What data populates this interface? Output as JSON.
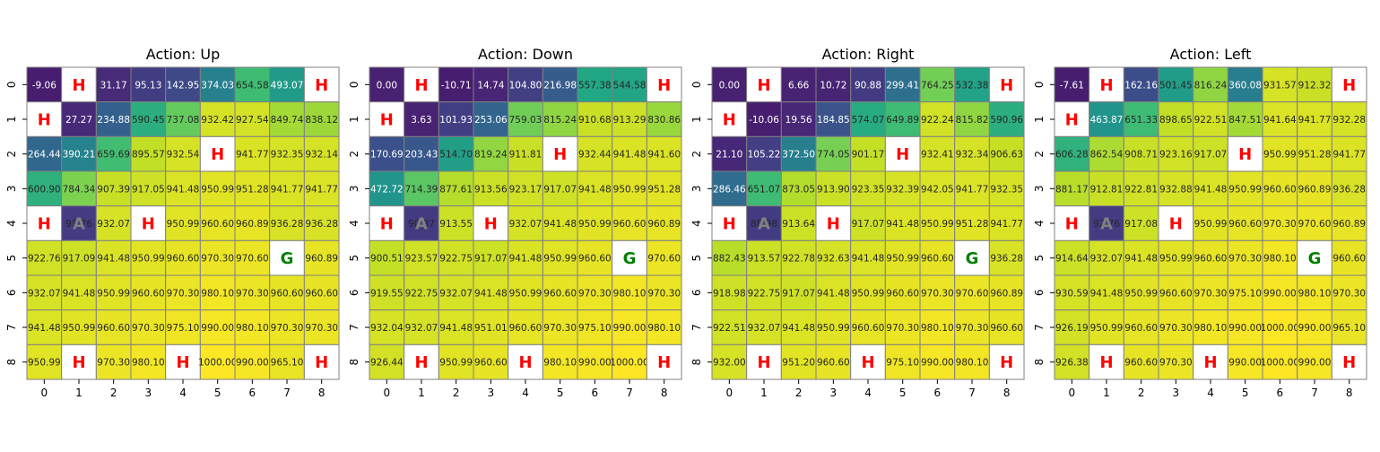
{
  "figure": {
    "colormap": "viridis",
    "colors": {
      "grid_line": "#808080",
      "hole_text": "#ff0000",
      "goal_text": "#008000",
      "agent_text": "#808080",
      "special_cell_bg": "#ffffff",
      "value_text_light": "#ffffff",
      "value_text_dark": "#262626"
    }
  },
  "chart_data": [
    {
      "type": "heatmap",
      "title": "Action: Up",
      "x_ticks": [
        "0",
        "1",
        "2",
        "3",
        "4",
        "5",
        "6",
        "7",
        "8"
      ],
      "y_ticks": [
        "0",
        "1",
        "2",
        "3",
        "4",
        "5",
        "6",
        "7",
        "8"
      ],
      "vmin": -100,
      "vmax": 1000,
      "values": [
        [
          "-9.06",
          "H",
          "31.17",
          "95.13",
          "142.95",
          "374.03",
          "654.58",
          "493.07",
          "H"
        ],
        [
          "H",
          "27.27",
          "234.88",
          "590.45",
          "737.08",
          "932.42",
          "927.54",
          "849.74",
          "838.12"
        ],
        [
          "264.44",
          "390.21",
          "659.69",
          "895.57",
          "932.54",
          "H",
          "941.77",
          "932.35",
          "932.14"
        ],
        [
          "600.90",
          "784.34",
          "907.39",
          "917.05",
          "941.48",
          "950.99",
          "951.28",
          "941.77",
          "941.77"
        ],
        [
          "H",
          "A",
          "932.07",
          "H",
          "950.99",
          "960.60",
          "960.89",
          "936.28",
          "936.28"
        ],
        [
          "922.76",
          "917.09",
          "941.48",
          "950.99",
          "960.60",
          "970.30",
          "970.60",
          "G",
          "960.89"
        ],
        [
          "932.07",
          "941.48",
          "950.99",
          "960.60",
          "970.30",
          "980.10",
          "970.30",
          "960.60",
          "960.60"
        ],
        [
          "941.48",
          "950.99",
          "960.60",
          "970.30",
          "975.10",
          "990.00",
          "980.10",
          "970.30",
          "970.30"
        ],
        [
          "950.99",
          "H",
          "970.30",
          "980.10",
          "H",
          "1000.00",
          "990.00",
          "965.10",
          "H"
        ]
      ],
      "agent_partial": "91.76"
    },
    {
      "type": "heatmap",
      "title": "Action: Down",
      "x_ticks": [
        "0",
        "1",
        "2",
        "3",
        "4",
        "5",
        "6",
        "7",
        "8"
      ],
      "y_ticks": [
        "0",
        "1",
        "2",
        "3",
        "4",
        "5",
        "6",
        "7",
        "8"
      ],
      "vmin": -100,
      "vmax": 1000,
      "values": [
        [
          "0.00",
          "H",
          "-10.71",
          "14.74",
          "104.80",
          "216.98",
          "557.38",
          "544.58",
          "H"
        ],
        [
          "H",
          "3.63",
          "101.93",
          "253.06",
          "759.03",
          "815.24",
          "910.68",
          "913.29",
          "830.86"
        ],
        [
          "170.69",
          "203.43",
          "514.70",
          "819.24",
          "911.81",
          "H",
          "932.44",
          "941.48",
          "941.60"
        ],
        [
          "472.72",
          "714.39",
          "877.61",
          "913.56",
          "923.17",
          "917.07",
          "941.48",
          "950.99",
          "951.28"
        ],
        [
          "H",
          "A",
          "913.55",
          "H",
          "932.07",
          "941.48",
          "950.99",
          "960.60",
          "960.89"
        ],
        [
          "900.51",
          "923.57",
          "922.75",
          "917.07",
          "941.48",
          "950.99",
          "960.60",
          "G",
          "970.60"
        ],
        [
          "919.55",
          "922.75",
          "932.07",
          "941.48",
          "950.99",
          "960.60",
          "970.30",
          "980.10",
          "970.30"
        ],
        [
          "932.04",
          "932.07",
          "941.48",
          "951.01",
          "960.60",
          "970.30",
          "975.10",
          "990.00",
          "980.10"
        ],
        [
          "926.44",
          "H",
          "950.99",
          "960.60",
          "H",
          "980.10",
          "990.00",
          "1000.00",
          "H"
        ]
      ],
      "agent_partial": "90.87"
    },
    {
      "type": "heatmap",
      "title": "Action: Right",
      "x_ticks": [
        "0",
        "1",
        "2",
        "3",
        "4",
        "5",
        "6",
        "7",
        "8"
      ],
      "y_ticks": [
        "0",
        "1",
        "2",
        "3",
        "4",
        "5",
        "6",
        "7",
        "8"
      ],
      "vmin": -100,
      "vmax": 1000,
      "values": [
        [
          "0.00",
          "H",
          "6.66",
          "10.72",
          "90.88",
          "299.41",
          "764.25",
          "532.38",
          "H"
        ],
        [
          "H",
          "-10.06",
          "19.56",
          "184.85",
          "574.07",
          "649.89",
          "922.24",
          "815.82",
          "590.96"
        ],
        [
          "21.10",
          "105.22",
          "372.50",
          "774.05",
          "901.17",
          "H",
          "932.41",
          "932.34",
          "906.63"
        ],
        [
          "286.46",
          "651.07",
          "873.05",
          "913.90",
          "923.35",
          "932.39",
          "942.05",
          "941.77",
          "932.35"
        ],
        [
          "H",
          "A",
          "913.64",
          "H",
          "917.07",
          "941.48",
          "950.99",
          "951.28",
          "941.77"
        ],
        [
          "882.43",
          "913.57",
          "922.78",
          "932.63",
          "941.48",
          "950.99",
          "960.60",
          "G",
          "936.28"
        ],
        [
          "918.98",
          "922.75",
          "917.07",
          "941.48",
          "950.99",
          "960.60",
          "970.30",
          "970.60",
          "960.89"
        ],
        [
          "922.51",
          "932.07",
          "941.48",
          "950.99",
          "960.60",
          "970.30",
          "980.10",
          "970.30",
          "960.60"
        ],
        [
          "932.00",
          "H",
          "951.20",
          "960.60",
          "H",
          "975.10",
          "990.00",
          "980.10",
          "H"
        ]
      ],
      "agent_partial": "88.98"
    },
    {
      "type": "heatmap",
      "title": "Action: Left",
      "x_ticks": [
        "0",
        "1",
        "2",
        "3",
        "4",
        "5",
        "6",
        "7",
        "8"
      ],
      "y_ticks": [
        "0",
        "1",
        "2",
        "3",
        "4",
        "5",
        "6",
        "7",
        "8"
      ],
      "vmin": -100,
      "vmax": 1000,
      "values": [
        [
          "-7.61",
          "H",
          "162.16",
          "501.45",
          "816.24",
          "360.08",
          "931.57",
          "912.32",
          "H"
        ],
        [
          "H",
          "463.87",
          "651.33",
          "898.65",
          "922.51",
          "847.51",
          "941.64",
          "941.77",
          "932.28"
        ],
        [
          "606.28",
          "862.54",
          "908.71",
          "923.16",
          "917.07",
          "H",
          "950.99",
          "951.28",
          "941.77"
        ],
        [
          "881.17",
          "912.81",
          "922.81",
          "932.88",
          "941.48",
          "950.99",
          "960.60",
          "960.89",
          "936.28"
        ],
        [
          "H",
          "A",
          "917.08",
          "H",
          "950.99",
          "960.60",
          "970.30",
          "970.60",
          "960.89"
        ],
        [
          "914.64",
          "932.07",
          "941.48",
          "950.99",
          "960.60",
          "970.30",
          "980.10",
          "G",
          "960.60"
        ],
        [
          "930.59",
          "941.48",
          "950.99",
          "960.60",
          "970.30",
          "975.10",
          "990.00",
          "980.10",
          "970.30"
        ],
        [
          "926.19",
          "950.99",
          "960.60",
          "970.30",
          "980.10",
          "990.00",
          "1000.00",
          "990.00",
          "965.10"
        ],
        [
          "926.38",
          "H",
          "960.60",
          "970.30",
          "H",
          "990.00",
          "1000.00",
          "990.00",
          "H"
        ]
      ],
      "agent_partial": "92.76"
    }
  ]
}
